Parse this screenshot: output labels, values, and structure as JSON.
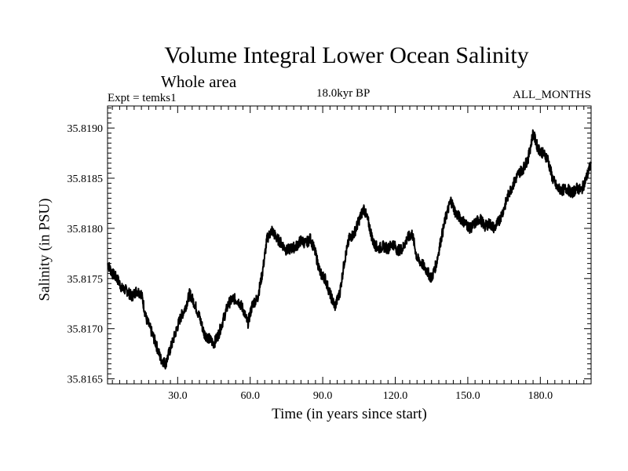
{
  "chart_data": {
    "type": "line",
    "title": "Volume Integral Lower Ocean Salinity",
    "subtitle": "Whole area",
    "annotations": {
      "left": "Expt = temks1",
      "center": "18.0kyr BP",
      "right": "ALL_MONTHS"
    },
    "xlabel": "Time (in years since start)",
    "ylabel": "Salinity (in PSU)",
    "xlim": [
      1,
      201
    ],
    "ylim": [
      35.81645,
      35.81922
    ],
    "xticks": [
      30,
      60,
      90,
      120,
      150,
      180
    ],
    "xtick_labels": [
      "30.0",
      "60.0",
      "90.0",
      "120.0",
      "150.0",
      "180.0"
    ],
    "yticks": [
      35.8165,
      35.817,
      35.8175,
      35.818,
      35.8185,
      35.819
    ],
    "ytick_labels": [
      "35.8165",
      "35.8170",
      "35.8175",
      "35.8180",
      "35.8185",
      "35.8190"
    ],
    "series": [
      {
        "name": "Salinity",
        "color": "#000000",
        "x": [
          1,
          3,
          5,
          7,
          9,
          11,
          13,
          15,
          17,
          19,
          21,
          23,
          25,
          27,
          29,
          31,
          33,
          35,
          37,
          39,
          41,
          43,
          45,
          47,
          49,
          51,
          53,
          55,
          57,
          59,
          61,
          63,
          65,
          67,
          69,
          71,
          73,
          75,
          77,
          79,
          81,
          83,
          85,
          87,
          89,
          91,
          93,
          95,
          97,
          99,
          101,
          103,
          105,
          107,
          109,
          111,
          113,
          115,
          117,
          119,
          121,
          123,
          125,
          127,
          129,
          131,
          133,
          135,
          137,
          139,
          141,
          143,
          145,
          147,
          149,
          151,
          153,
          155,
          157,
          159,
          161,
          163,
          165,
          167,
          169,
          171,
          173,
          175,
          177,
          179,
          181,
          183,
          185,
          187,
          189,
          191,
          193,
          195,
          197,
          199,
          201
        ],
        "values": [
          35.81765,
          35.81755,
          35.8175,
          35.8174,
          35.81738,
          35.81732,
          35.81738,
          35.81735,
          35.8171,
          35.81698,
          35.81685,
          35.8167,
          35.81665,
          35.8168,
          35.81695,
          35.8171,
          35.8172,
          35.81735,
          35.81725,
          35.81712,
          35.81695,
          35.8169,
          35.81685,
          35.81695,
          35.8171,
          35.81725,
          35.8173,
          35.81728,
          35.8172,
          35.81705,
          35.81725,
          35.8173,
          35.81755,
          35.8179,
          35.81798,
          35.8179,
          35.81785,
          35.81778,
          35.8178,
          35.81782,
          35.81788,
          35.81785,
          35.8179,
          35.81775,
          35.81755,
          35.8175,
          35.81735,
          35.81722,
          35.81735,
          35.81768,
          35.8179,
          35.81795,
          35.81808,
          35.8182,
          35.81805,
          35.81785,
          35.8178,
          35.81782,
          35.8178,
          35.81785,
          35.81778,
          35.8178,
          35.8179,
          35.81795,
          35.8177,
          35.81765,
          35.81758,
          35.8175,
          35.81765,
          35.8179,
          35.81812,
          35.81828,
          35.81815,
          35.8181,
          35.81805,
          35.818,
          35.81805,
          35.8181,
          35.81802,
          35.81805,
          35.818,
          35.81808,
          35.8182,
          35.81835,
          35.81845,
          35.81855,
          35.8186,
          35.8187,
          35.81895,
          35.8188,
          35.81875,
          35.8187,
          35.8185,
          35.8184,
          35.81838,
          35.8184,
          35.81835,
          35.8184,
          35.81838,
          35.8185,
          35.81865
        ]
      }
    ]
  }
}
